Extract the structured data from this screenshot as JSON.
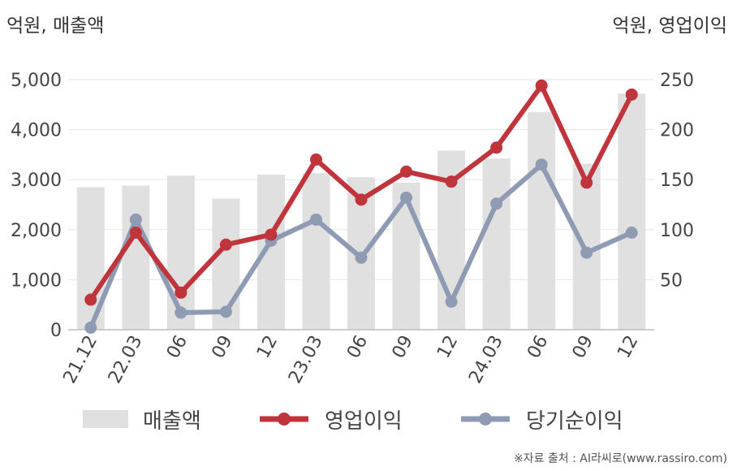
{
  "header": {
    "left_unit": "억원, 매출액",
    "right_unit": "억원, 영업이익"
  },
  "chart_data": {
    "type": "bar",
    "categories": [
      "21.12",
      "22.03",
      "06",
      "09",
      "12",
      "23.03",
      "06",
      "09",
      "12",
      "24.03",
      "06",
      "09",
      "12"
    ],
    "series": [
      {
        "name": "매출액",
        "type": "bar",
        "axis": "left",
        "color": "#e0e0e0",
        "values": [
          2850,
          2880,
          3080,
          2620,
          3100,
          3130,
          3050,
          2940,
          3580,
          3420,
          4350,
          3320,
          4720
        ]
      },
      {
        "name": "영업이익",
        "type": "line",
        "axis": "right",
        "color": "#c0343c",
        "values": [
          30,
          97,
          37,
          85,
          95,
          170,
          130,
          158,
          148,
          182,
          244,
          147,
          235
        ]
      },
      {
        "name": "당기순이익",
        "type": "line",
        "axis": "right",
        "color": "#8f9bb3",
        "values": [
          2,
          110,
          17,
          18,
          89,
          110,
          72,
          132,
          28,
          126,
          165,
          77,
          97
        ]
      }
    ],
    "left_axis": {
      "ylim": [
        0,
        5000
      ],
      "ticks": [
        0,
        1000,
        2000,
        3000,
        4000,
        5000
      ],
      "tick_labels": [
        "0",
        "1,000",
        "2,000",
        "3,000",
        "4,000",
        "5,000"
      ]
    },
    "right_axis": {
      "ylim": [
        0,
        250
      ],
      "ticks": [
        50,
        100,
        150,
        200,
        250
      ],
      "tick_labels": [
        "50",
        "100",
        "150",
        "200",
        "250"
      ]
    },
    "grid": true,
    "legend_position": "bottom"
  },
  "legend": {
    "items": [
      "매출액",
      "영업이익",
      "당기순이익"
    ]
  },
  "footer": {
    "source": "※자료 출처 : AI라씨로(www.rassiro.com)"
  }
}
